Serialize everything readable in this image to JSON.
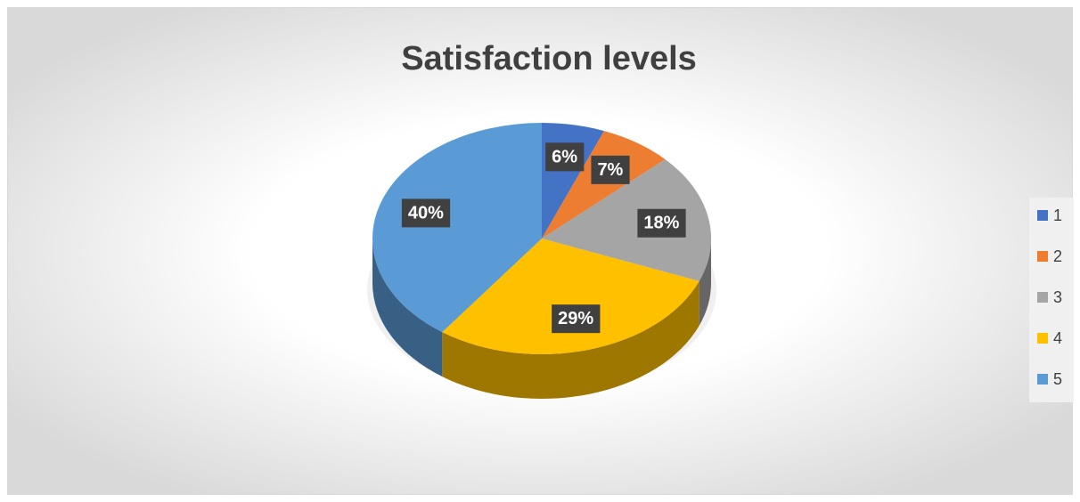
{
  "chart_data": {
    "type": "pie",
    "title": "Satisfaction levels",
    "categories": [
      "1",
      "2",
      "3",
      "4",
      "5"
    ],
    "values": [
      6,
      7,
      18,
      29,
      40
    ],
    "value_labels": [
      "6%",
      "7%",
      "18%",
      "29%",
      "40%"
    ],
    "colors": [
      "#4472c4",
      "#ed7d31",
      "#a5a5a5",
      "#ffc000",
      "#5b9bd5"
    ],
    "legend": "right"
  }
}
